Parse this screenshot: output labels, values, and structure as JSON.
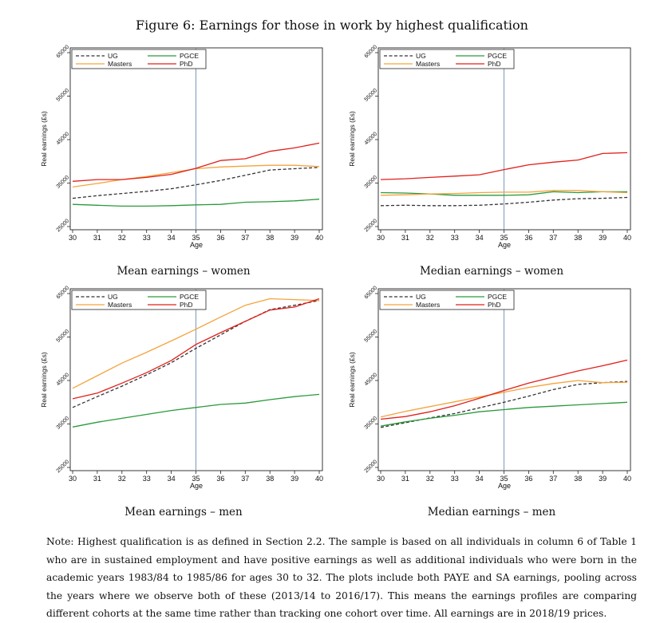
{
  "figure_title": "Figure 6: Earnings for those in work by highest qualification",
  "note": "Note: Highest qualification is as defined in Section 2.2. The sample is based on all individuals in column 6 of Table 1 who are in sustained employment and have positive earnings as well as additional individuals who were born in the academic years 1983/84 to 1985/86 for ages 30 to 32. The plots include both PAYE and SA earnings, pooling across the years where we observe both of these (2013/14 to 2016/17). This means the earnings profiles are comparing different cohorts at the same time rather than tracking one cohort over time. All earnings are in 2018/19 prices.",
  "legend": {
    "entries": [
      {
        "name": "UG",
        "color": "#333333",
        "dash": true
      },
      {
        "name": "PGCE",
        "color": "#2a9a3a",
        "dash": false
      },
      {
        "name": "Masters",
        "color": "#f5a33c",
        "dash": false
      },
      {
        "name": "PhD",
        "color": "#e0201b",
        "dash": false
      }
    ]
  },
  "colors": {
    "UG": "#333333",
    "PGCE": "#2a9a3a",
    "Masters": "#f5a33c",
    "PhD": "#e0201b",
    "refline": "#6b8fb3"
  },
  "chart_data": [
    {
      "type": "line",
      "caption": "Mean earnings – women",
      "xlabel": "Age",
      "ylabel": "Real earnings (£s)",
      "x": [
        30,
        31,
        32,
        33,
        34,
        35,
        36,
        37,
        38,
        39,
        40
      ],
      "xticks": [
        "30",
        "31",
        "32",
        "33",
        "34",
        "35",
        "36",
        "37",
        "38",
        "39",
        "40"
      ],
      "yticks": [
        "25000",
        "35000",
        "45000",
        "55000",
        "65000"
      ],
      "ylim": [
        25000,
        65000
      ],
      "refline_x": 35,
      "series": [
        {
          "name": "UG",
          "values": [
            31500,
            32100,
            32600,
            33100,
            33700,
            34600,
            35600,
            36800,
            38000,
            38300,
            38600
          ]
        },
        {
          "name": "PGCE",
          "values": [
            30100,
            29900,
            29700,
            29700,
            29800,
            30000,
            30100,
            30600,
            30700,
            30900,
            31300
          ]
        },
        {
          "name": "Masters",
          "values": [
            34100,
            34900,
            35800,
            36500,
            37400,
            38300,
            38700,
            38900,
            39100,
            39100,
            38800
          ]
        },
        {
          "name": "PhD",
          "values": [
            35400,
            35800,
            35800,
            36300,
            37000,
            38400,
            40200,
            40600,
            42300,
            43100,
            44200
          ]
        }
      ]
    },
    {
      "type": "line",
      "caption": "Median earnings – women",
      "xlabel": "Age",
      "ylabel": "Real earnings (£s)",
      "x": [
        30,
        31,
        32,
        33,
        34,
        35,
        36,
        37,
        38,
        39,
        40
      ],
      "xticks": [
        "30",
        "31",
        "32",
        "33",
        "34",
        "35",
        "36",
        "37",
        "38",
        "39",
        "40"
      ],
      "yticks": [
        "25000",
        "35000",
        "45000",
        "55000",
        "65000"
      ],
      "ylim": [
        25000,
        65000
      ],
      "refline_x": 35,
      "series": [
        {
          "name": "UG",
          "values": [
            29800,
            29900,
            29800,
            29800,
            29900,
            30200,
            30600,
            31100,
            31400,
            31500,
            31700
          ]
        },
        {
          "name": "PGCE",
          "values": [
            32800,
            32700,
            32500,
            32200,
            32200,
            32200,
            32300,
            33000,
            32800,
            33000,
            33000
          ]
        },
        {
          "name": "Masters",
          "values": [
            32200,
            32300,
            32500,
            32600,
            32800,
            32900,
            32900,
            33300,
            33300,
            33000,
            32800
          ]
        },
        {
          "name": "PhD",
          "values": [
            35800,
            36000,
            36300,
            36600,
            36900,
            38100,
            39200,
            39800,
            40300,
            41800,
            42000
          ]
        }
      ]
    },
    {
      "type": "line",
      "caption": "Mean earnings – men",
      "xlabel": "Age",
      "ylabel": "Real earnings (£s)",
      "x": [
        30,
        31,
        32,
        33,
        34,
        35,
        36,
        37,
        38,
        39,
        40
      ],
      "xticks": [
        "30",
        "31",
        "32",
        "33",
        "34",
        "35",
        "36",
        "37",
        "38",
        "39",
        "40"
      ],
      "yticks": [
        "25000",
        "35000",
        "45000",
        "55000",
        "65000"
      ],
      "ylim": [
        25000,
        65000
      ],
      "refline_x": 35,
      "series": [
        {
          "name": "UG",
          "values": [
            38800,
            41300,
            43700,
            46300,
            49100,
            52400,
            55500,
            58600,
            61300,
            62300,
            63400
          ]
        },
        {
          "name": "PGCE",
          "values": [
            34300,
            35400,
            36300,
            37200,
            38100,
            38800,
            39500,
            39800,
            40600,
            41300,
            41800
          ]
        },
        {
          "name": "Masters",
          "values": [
            43200,
            46100,
            49000,
            51500,
            54100,
            56800,
            59600,
            62300,
            63800,
            63600,
            63400
          ]
        },
        {
          "name": "PhD",
          "values": [
            40800,
            42100,
            44400,
            46800,
            49600,
            53300,
            56000,
            58600,
            61200,
            61900,
            63800
          ]
        }
      ]
    },
    {
      "type": "line",
      "caption": "Median earnings – men",
      "xlabel": "Age",
      "ylabel": "Real earnings (£s)",
      "x": [
        30,
        31,
        32,
        33,
        34,
        35,
        36,
        37,
        38,
        39,
        40
      ],
      "xticks": [
        "30",
        "31",
        "32",
        "33",
        "34",
        "35",
        "36",
        "37",
        "38",
        "39",
        "40"
      ],
      "yticks": [
        "25000",
        "35000",
        "45000",
        "55000",
        "65000"
      ],
      "ylim": [
        25000,
        65000
      ],
      "refline_x": 35,
      "series": [
        {
          "name": "UG",
          "values": [
            34200,
            35300,
            36400,
            37400,
            38700,
            40000,
            41400,
            42900,
            44100,
            44500,
            44800
          ]
        },
        {
          "name": "PGCE",
          "values": [
            34500,
            35500,
            36300,
            37000,
            37800,
            38300,
            38800,
            39100,
            39400,
            39700,
            40000
          ]
        },
        {
          "name": "Masters",
          "values": [
            36600,
            37900,
            39000,
            40100,
            41200,
            42300,
            43400,
            44300,
            45000,
            44500,
            44600
          ]
        },
        {
          "name": "PhD",
          "values": [
            36100,
            36700,
            37800,
            39200,
            40900,
            42700,
            44400,
            45800,
            47200,
            48400,
            49700
          ]
        }
      ]
    }
  ]
}
